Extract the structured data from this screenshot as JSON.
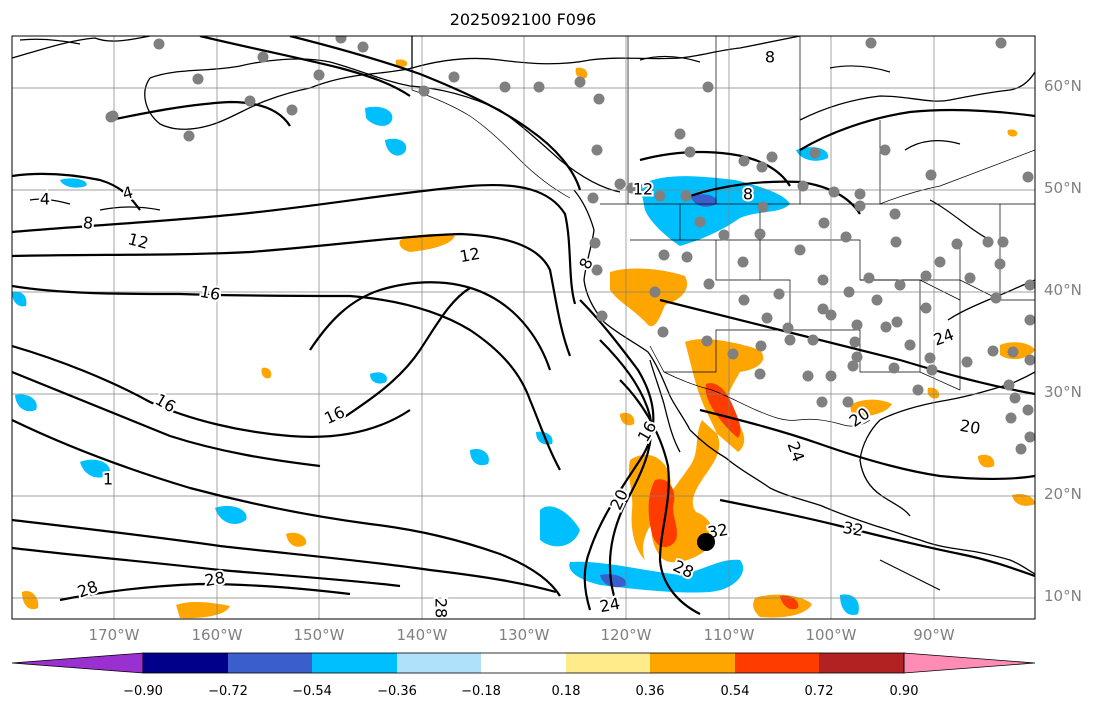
{
  "title": "2025092100 F096",
  "lat_labels": [
    "60°N",
    "50°N",
    "40°N",
    "30°N",
    "20°N",
    "10°N"
  ],
  "lon_labels": [
    "170°W",
    "160°W",
    "150°W",
    "140°W",
    "130°W",
    "120°W",
    "110°W",
    "100°W",
    "90°W"
  ],
  "contour_labels": [
    "4",
    "4",
    "8",
    "8",
    "12",
    "12",
    "12",
    "16",
    "16",
    "16",
    "16",
    "20",
    "20",
    "20",
    "24",
    "24",
    "24",
    "28",
    "28",
    "28",
    "28",
    "32",
    "32",
    "8",
    "8",
    "1"
  ],
  "colorbar": {
    "tick_labels": [
      "−0.90",
      "−0.72",
      "−0.54",
      "−0.36",
      "−0.18",
      "0.18",
      "0.36",
      "0.54",
      "0.72",
      "0.90"
    ],
    "colors": [
      "#9b30d0",
      "#00008b",
      "#3a5fcd",
      "#00bfff",
      "#afe1fa",
      "#ffffff",
      "#ffeb8a",
      "#ffa500",
      "#ff3c00",
      "#b22222",
      "#ff8cb4"
    ]
  },
  "colors": {
    "coast": "#000000",
    "contour": "#000000",
    "grid": "#808080",
    "station_dot": "#808080",
    "storm_marker": "#000000"
  }
}
